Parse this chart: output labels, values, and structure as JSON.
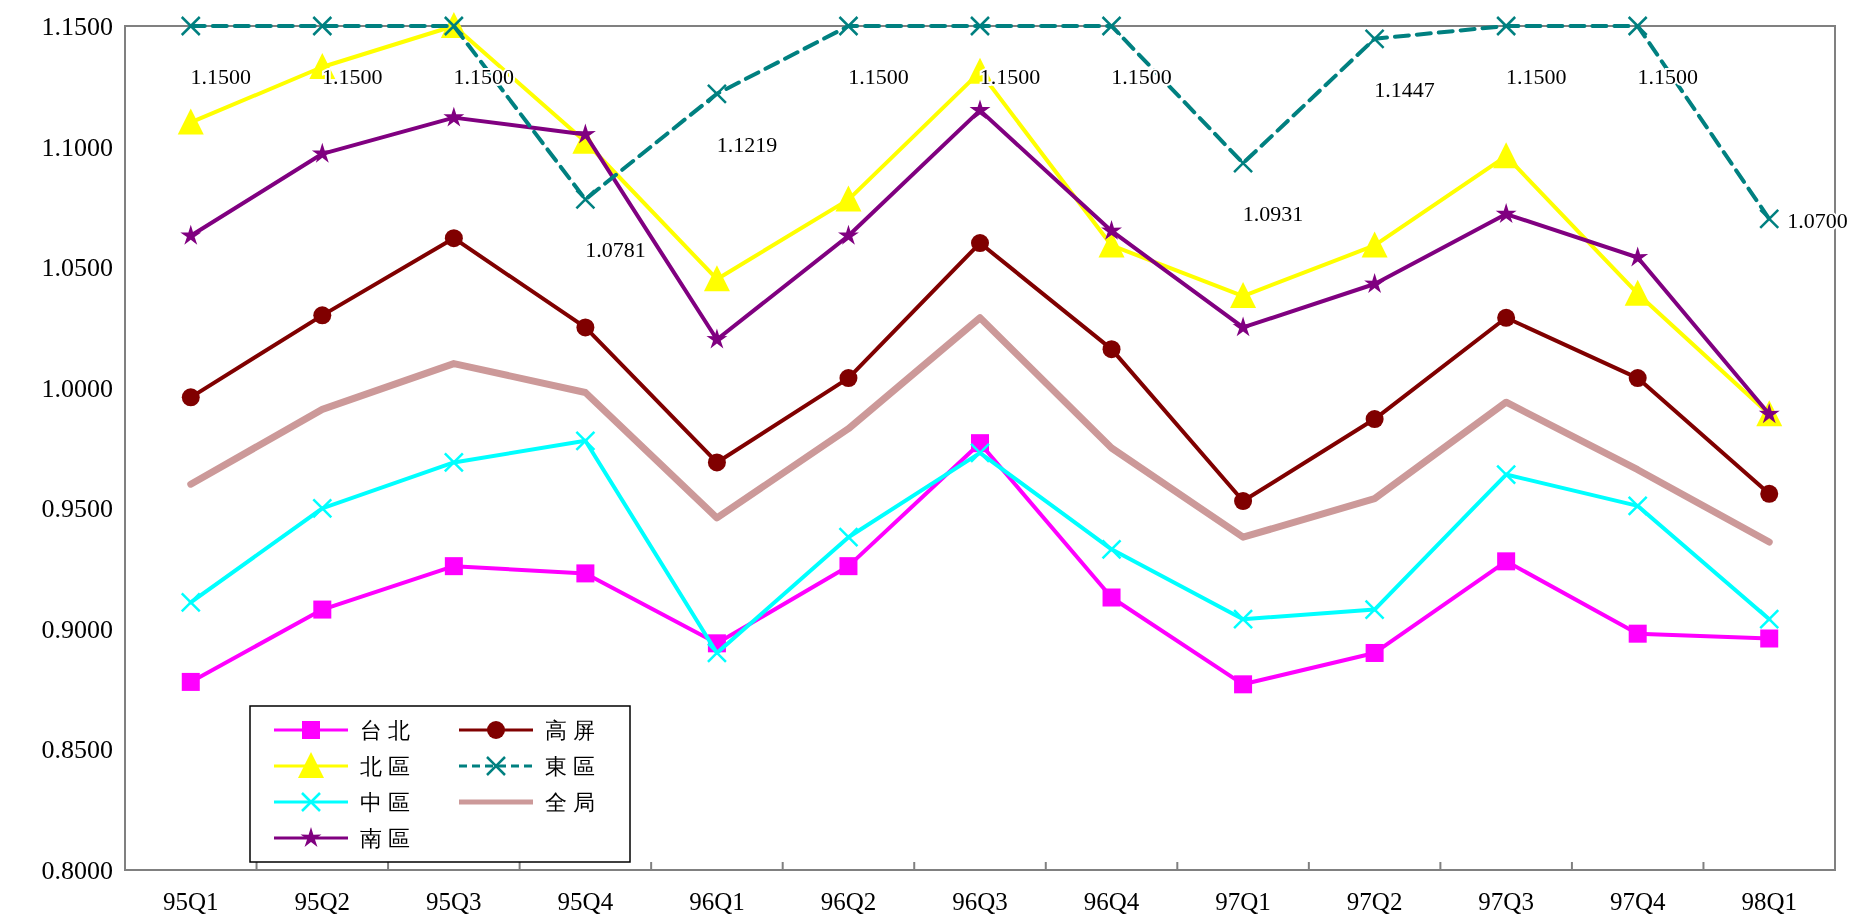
{
  "chart_data": {
    "type": "line",
    "categories": [
      "95Q1",
      "95Q2",
      "95Q3",
      "95Q4",
      "96Q1",
      "96Q2",
      "96Q3",
      "96Q4",
      "97Q1",
      "97Q2",
      "97Q3",
      "97Q4",
      "98Q1"
    ],
    "ylim": [
      0.8,
      1.15
    ],
    "yticks": [
      {
        "value": 0.8,
        "label": "0.8000"
      },
      {
        "value": 0.85,
        "label": "0.8500"
      },
      {
        "value": 0.9,
        "label": "0.9000"
      },
      {
        "value": 0.95,
        "label": "0.9500"
      },
      {
        "value": 1.0,
        "label": "1.0000"
      },
      {
        "value": 1.05,
        "label": "1.0500"
      },
      {
        "value": 1.1,
        "label": "1.1000"
      },
      {
        "value": 1.15,
        "label": "1.1500"
      }
    ],
    "grid": false,
    "legend": "bottom left",
    "series": [
      {
        "name": "台北",
        "color": "#ff00ff",
        "marker": "square",
        "values": [
          0.878,
          0.908,
          0.926,
          0.923,
          0.894,
          0.926,
          0.977,
          0.913,
          0.877,
          0.89,
          0.928,
          0.898,
          0.896
        ]
      },
      {
        "name": "北區",
        "color": "#ffff00",
        "marker": "triangle",
        "values": [
          1.11,
          1.133,
          1.15,
          1.102,
          1.045,
          1.078,
          1.131,
          1.059,
          1.038,
          1.059,
          1.096,
          1.039,
          0.989
        ]
      },
      {
        "name": "中區",
        "color": "#00ffff",
        "marker": "cross",
        "values": [
          0.911,
          0.95,
          0.969,
          0.978,
          0.89,
          0.938,
          0.973,
          0.933,
          0.904,
          0.908,
          0.964,
          0.951,
          0.904
        ]
      },
      {
        "name": "南區",
        "color": "#800080",
        "marker": "star",
        "values": [
          1.063,
          1.097,
          1.112,
          1.105,
          1.02,
          1.063,
          1.115,
          1.065,
          1.025,
          1.043,
          1.072,
          1.054,
          0.989
        ]
      },
      {
        "name": "高屏",
        "color": "#800000",
        "marker": "circle",
        "values": [
          0.996,
          1.03,
          1.062,
          1.025,
          0.969,
          1.004,
          1.06,
          1.016,
          0.953,
          0.987,
          1.029,
          1.004,
          0.956
        ]
      },
      {
        "name": "東區",
        "color": "#008080",
        "marker": "cross",
        "line_style": "dashed",
        "values": [
          1.15,
          1.15,
          1.15,
          1.0781,
          1.1219,
          1.15,
          1.15,
          1.15,
          1.0931,
          1.1447,
          1.15,
          1.15,
          1.07
        ],
        "value_labels": [
          "1.1500",
          "1.1500",
          "1.1500",
          "1.0781",
          "1.1219",
          "1.1500",
          "1.1500",
          "1.1500",
          "1.0931",
          "1.1447",
          "1.1500",
          "1.1500",
          "1.0700"
        ]
      },
      {
        "name": "全局",
        "color": "#cc9999",
        "marker": "none",
        "values": [
          0.96,
          0.991,
          1.01,
          0.998,
          0.946,
          0.983,
          1.029,
          0.975,
          0.938,
          0.954,
          0.994,
          0.966,
          0.936
        ]
      }
    ]
  }
}
